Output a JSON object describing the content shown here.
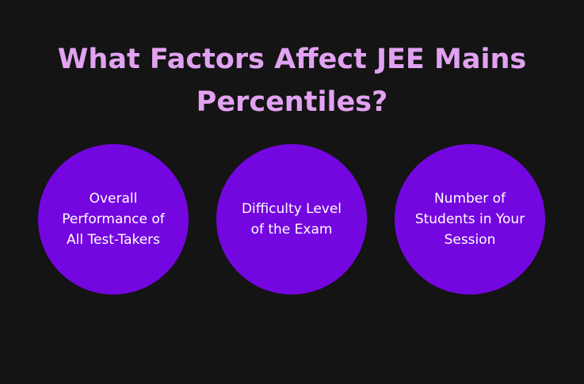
{
  "title": "What Factors Affect JEE Mains Percentiles?",
  "nodes": [
    {
      "label": "Overall Performance of All Test-Takers"
    },
    {
      "label": "Difficulty Level of the Exam"
    },
    {
      "label": "Number of Students in Your Session"
    }
  ]
}
